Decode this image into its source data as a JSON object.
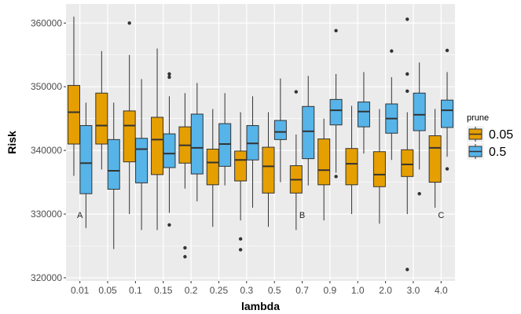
{
  "chart_data": {
    "type": "boxplot",
    "title": "",
    "xlabel": "lambda",
    "ylabel": "Risk",
    "categories": [
      "0.01",
      "0.05",
      "0.1",
      "0.15",
      "0.2",
      "0.25",
      "0.3",
      "0.5",
      "0.7",
      "0.9",
      "1.0",
      "2.0",
      "3.0",
      "4.0"
    ],
    "ylim": [
      319500,
      363000
    ],
    "yticks": [
      320000,
      330000,
      340000,
      350000,
      360000
    ],
    "ytick_labels": [
      "320000",
      "330000",
      "340000",
      "350000",
      "360000"
    ],
    "grid": true,
    "legend": {
      "title": "prune",
      "position": "right"
    },
    "series": [
      {
        "name": "0.05",
        "color": "#E69F00",
        "boxes": [
          {
            "whislo": 336000,
            "q1": 341000,
            "med": 346000,
            "q3": 350200,
            "whishi": 361000,
            "outliers": []
          },
          {
            "whislo": 337000,
            "q1": 341000,
            "med": 343900,
            "q3": 349000,
            "whishi": 355600,
            "outliers": []
          },
          {
            "whislo": 330000,
            "q1": 338200,
            "med": 343900,
            "q3": 346200,
            "whishi": 355000,
            "outliers": [
              360000
            ]
          },
          {
            "whislo": 327500,
            "q1": 336200,
            "med": 341700,
            "q3": 345200,
            "whishi": 356000,
            "outliers": []
          },
          {
            "whislo": 334000,
            "q1": 338000,
            "med": 340800,
            "q3": 343700,
            "whishi": 349000,
            "outliers": [
              324700,
              323300
            ]
          },
          {
            "whislo": 328000,
            "q1": 334600,
            "med": 338100,
            "q3": 340200,
            "whishi": 346500,
            "outliers": []
          },
          {
            "whislo": 329000,
            "q1": 335200,
            "med": 338500,
            "q3": 339900,
            "whishi": 346000,
            "outliers": [
              326100,
              324400
            ]
          },
          {
            "whislo": 328000,
            "q1": 333300,
            "med": 337500,
            "q3": 340500,
            "whishi": 346000,
            "outliers": []
          },
          {
            "whislo": 327500,
            "q1": 333300,
            "med": 335400,
            "q3": 337600,
            "whishi": 342500,
            "outliers": [
              349200
            ]
          },
          {
            "whislo": 329000,
            "q1": 334600,
            "med": 336900,
            "q3": 341800,
            "whishi": 345000,
            "outliers": []
          },
          {
            "whislo": 330000,
            "q1": 334600,
            "med": 337900,
            "q3": 340300,
            "whishi": 347000,
            "outliers": []
          },
          {
            "whislo": 328500,
            "q1": 334300,
            "med": 336200,
            "q3": 339800,
            "whishi": 346500,
            "outliers": []
          },
          {
            "whislo": 330000,
            "q1": 335900,
            "med": 337800,
            "q3": 340100,
            "whishi": 346000,
            "outliers": [
              360600,
              352000,
              349300,
              321300
            ]
          },
          {
            "whislo": 331000,
            "q1": 335000,
            "med": 340400,
            "q3": 342300,
            "whishi": 346500,
            "outliers": []
          }
        ]
      },
      {
        "name": "0.5",
        "color": "#56B4E9",
        "boxes": [
          {
            "whislo": 327800,
            "q1": 333200,
            "med": 338000,
            "q3": 343900,
            "whishi": 347500,
            "outliers": []
          },
          {
            "whislo": 324500,
            "q1": 333900,
            "med": 336800,
            "q3": 341700,
            "whishi": 347500,
            "outliers": []
          },
          {
            "whislo": 327500,
            "q1": 334900,
            "med": 340200,
            "q3": 341900,
            "whishi": 351200,
            "outliers": []
          },
          {
            "whislo": 330200,
            "q1": 337300,
            "med": 339500,
            "q3": 342600,
            "whishi": 348500,
            "outliers": [
              352000,
              351500,
              328300
            ]
          },
          {
            "whislo": 332000,
            "q1": 336300,
            "med": 340400,
            "q3": 345700,
            "whishi": 350600,
            "outliers": []
          },
          {
            "whislo": 334500,
            "q1": 337500,
            "med": 341000,
            "q3": 344200,
            "whishi": 349000,
            "outliers": []
          },
          {
            "whislo": 331000,
            "q1": 338500,
            "med": 341100,
            "q3": 343900,
            "whishi": 348500,
            "outliers": []
          },
          {
            "whislo": 335000,
            "q1": 341700,
            "med": 342900,
            "q3": 344700,
            "whishi": 351300,
            "outliers": []
          },
          {
            "whislo": 334500,
            "q1": 338700,
            "med": 343000,
            "q3": 346900,
            "whishi": 351700,
            "outliers": []
          },
          {
            "whislo": 336500,
            "q1": 344000,
            "med": 346300,
            "q3": 348000,
            "whishi": 352000,
            "outliers": [
              358800,
              335900
            ]
          },
          {
            "whislo": 339500,
            "q1": 343700,
            "med": 346100,
            "q3": 347600,
            "whishi": 352300,
            "outliers": []
          },
          {
            "whislo": 338500,
            "q1": 342700,
            "med": 345000,
            "q3": 347300,
            "whishi": 351500,
            "outliers": [
              355600
            ]
          },
          {
            "whislo": 337000,
            "q1": 343100,
            "med": 345600,
            "q3": 349000,
            "whishi": 353800,
            "outliers": [
              333200
            ]
          },
          {
            "whislo": 339000,
            "q1": 343600,
            "med": 346300,
            "q3": 347900,
            "whishi": 352300,
            "outliers": [
              355700,
              337100
            ]
          }
        ]
      }
    ],
    "annotations": [
      {
        "text": "A",
        "category": "0.01",
        "y": 329900
      },
      {
        "text": "B",
        "category": "0.7",
        "y": 329900
      },
      {
        "text": "C",
        "category": "4.0",
        "y": 329900
      }
    ]
  }
}
